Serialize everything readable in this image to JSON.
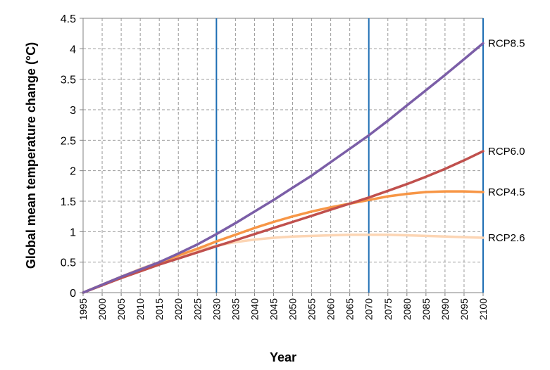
{
  "chart_data": {
    "type": "line",
    "title": "",
    "xlabel": "Year",
    "ylabel": "Global mean temperature change (°C)",
    "xlim": [
      1995,
      2100
    ],
    "ylim": [
      0,
      4.5
    ],
    "x_ticks": [
      "1995",
      "2000",
      "2005",
      "2010",
      "2015",
      "2020",
      "2025",
      "2030",
      "2035",
      "2040",
      "2045",
      "2050",
      "2055",
      "2060",
      "2065",
      "2070",
      "2075",
      "2080",
      "2085",
      "2090",
      "2095",
      "2100"
    ],
    "y_ticks": [
      "0",
      "0.5",
      "1",
      "1.5",
      "2",
      "2.5",
      "3",
      "3.5",
      "4",
      "4.5"
    ],
    "grid": true,
    "vertical_markers": [
      2030,
      2070,
      2100
    ],
    "series": [
      {
        "name": "RCP8.5",
        "color": "#7b5ea7",
        "x": [
          1995,
          2000,
          2005,
          2010,
          2015,
          2020,
          2025,
          2030,
          2035,
          2040,
          2045,
          2050,
          2055,
          2060,
          2065,
          2070,
          2075,
          2080,
          2085,
          2090,
          2095,
          2100
        ],
        "values": [
          0,
          0.13,
          0.26,
          0.38,
          0.5,
          0.64,
          0.79,
          0.96,
          1.14,
          1.33,
          1.52,
          1.72,
          1.92,
          2.14,
          2.36,
          2.58,
          2.82,
          3.07,
          3.32,
          3.57,
          3.83,
          4.09
        ]
      },
      {
        "name": "RCP6.0",
        "color": "#c0504d",
        "x": [
          1995,
          2000,
          2005,
          2010,
          2015,
          2020,
          2025,
          2030,
          2035,
          2040,
          2045,
          2050,
          2055,
          2060,
          2065,
          2070,
          2075,
          2080,
          2085,
          2090,
          2095,
          2100
        ],
        "values": [
          0,
          0.12,
          0.24,
          0.35,
          0.46,
          0.56,
          0.66,
          0.76,
          0.86,
          0.96,
          1.06,
          1.16,
          1.26,
          1.36,
          1.46,
          1.56,
          1.67,
          1.78,
          1.9,
          2.03,
          2.17,
          2.32
        ]
      },
      {
        "name": "RCP4.5",
        "color": "#f79646",
        "x": [
          1995,
          2000,
          2005,
          2010,
          2015,
          2020,
          2025,
          2030,
          2035,
          2040,
          2045,
          2050,
          2055,
          2060,
          2065,
          2070,
          2075,
          2080,
          2085,
          2090,
          2095,
          2100
        ],
        "values": [
          0,
          0.13,
          0.26,
          0.38,
          0.49,
          0.61,
          0.72,
          0.84,
          0.95,
          1.06,
          1.16,
          1.25,
          1.33,
          1.4,
          1.46,
          1.52,
          1.58,
          1.62,
          1.65,
          1.66,
          1.66,
          1.65
        ]
      },
      {
        "name": "RCP2.6",
        "color": "#fcd5b4",
        "x": [
          1995,
          2000,
          2005,
          2010,
          2015,
          2020,
          2025,
          2030,
          2035,
          2040,
          2045,
          2050,
          2055,
          2060,
          2065,
          2070,
          2075,
          2080,
          2085,
          2090,
          2095,
          2100
        ],
        "values": [
          0,
          0.13,
          0.26,
          0.39,
          0.5,
          0.6,
          0.7,
          0.77,
          0.83,
          0.87,
          0.9,
          0.92,
          0.93,
          0.94,
          0.95,
          0.95,
          0.95,
          0.94,
          0.93,
          0.92,
          0.91,
          0.9
        ]
      }
    ]
  }
}
